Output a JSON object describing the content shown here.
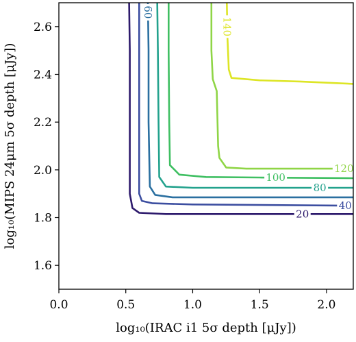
{
  "chart_data": {
    "type": "contour",
    "xlabel": "log₁₀(IRAC i1 5σ depth [μJy])",
    "ylabel": "log₁₀(MIPS 24μm 5σ depth [μJy])",
    "xlim": [
      0.0,
      2.2
    ],
    "ylim": [
      1.5,
      2.7
    ],
    "xticks": [
      "0.0",
      "0.5",
      "1.0",
      "1.5",
      "2.0"
    ],
    "xtick_values": [
      0.0,
      0.5,
      1.0,
      1.5,
      2.0
    ],
    "yticks": [
      "1.6",
      "1.8",
      "2.0",
      "2.2",
      "2.4",
      "2.6"
    ],
    "ytick_values": [
      1.6,
      1.8,
      2.0,
      2.2,
      2.4,
      2.6
    ],
    "grid": false,
    "levels": [
      {
        "label": "20",
        "color": "#2d1a6c",
        "points": [
          [
            0.525,
            2.7
          ],
          [
            0.53,
            2.5
          ],
          [
            0.53,
            2.2
          ],
          [
            0.53,
            1.9
          ],
          [
            0.55,
            1.84
          ],
          [
            0.6,
            1.82
          ],
          [
            0.8,
            1.815
          ],
          [
            1.5,
            1.815
          ],
          [
            2.2,
            1.815
          ]
        ]
      },
      {
        "label": "40",
        "color": "#3c4ea0",
        "points": [
          [
            0.6,
            2.7
          ],
          [
            0.6,
            2.5
          ],
          [
            0.6,
            2.2
          ],
          [
            0.6,
            1.9
          ],
          [
            0.62,
            1.87
          ],
          [
            0.7,
            1.86
          ],
          [
            1.0,
            1.855
          ],
          [
            2.2,
            1.85
          ]
        ]
      },
      {
        "label": "60",
        "color": "#2a6fa0",
        "points": [
          [
            0.665,
            2.7
          ],
          [
            0.67,
            2.5
          ],
          [
            0.67,
            2.2
          ],
          [
            0.68,
            1.93
          ],
          [
            0.72,
            1.895
          ],
          [
            0.85,
            1.885
          ],
          [
            2.2,
            1.885
          ]
        ]
      },
      {
        "label": "80",
        "color": "#23a28d",
        "points": [
          [
            0.735,
            2.7
          ],
          [
            0.74,
            2.5
          ],
          [
            0.745,
            2.2
          ],
          [
            0.75,
            1.97
          ],
          [
            0.8,
            1.93
          ],
          [
            1.0,
            1.925
          ],
          [
            2.2,
            1.925
          ]
        ]
      },
      {
        "label": "100",
        "color": "#3fbf62",
        "points": [
          [
            0.82,
            2.7
          ],
          [
            0.82,
            2.5
          ],
          [
            0.825,
            2.2
          ],
          [
            0.83,
            2.02
          ],
          [
            0.9,
            1.98
          ],
          [
            1.1,
            1.97
          ],
          [
            1.5,
            1.968
          ],
          [
            2.2,
            1.965
          ]
        ]
      },
      {
        "label": "120",
        "color": "#8fd546",
        "points": [
          [
            1.14,
            2.7
          ],
          [
            1.14,
            2.5
          ],
          [
            1.15,
            2.38
          ],
          [
            1.18,
            2.33
          ],
          [
            1.19,
            2.1
          ],
          [
            1.2,
            2.05
          ],
          [
            1.25,
            2.01
          ],
          [
            1.4,
            2.005
          ],
          [
            2.2,
            2.005
          ]
        ]
      },
      {
        "label": "140",
        "color": "#dde525",
        "points": [
          [
            1.255,
            2.7
          ],
          [
            1.26,
            2.55
          ],
          [
            1.27,
            2.42
          ],
          [
            1.29,
            2.385
          ],
          [
            1.5,
            2.375
          ],
          [
            1.8,
            2.37
          ],
          [
            2.2,
            2.36
          ]
        ]
      }
    ]
  }
}
